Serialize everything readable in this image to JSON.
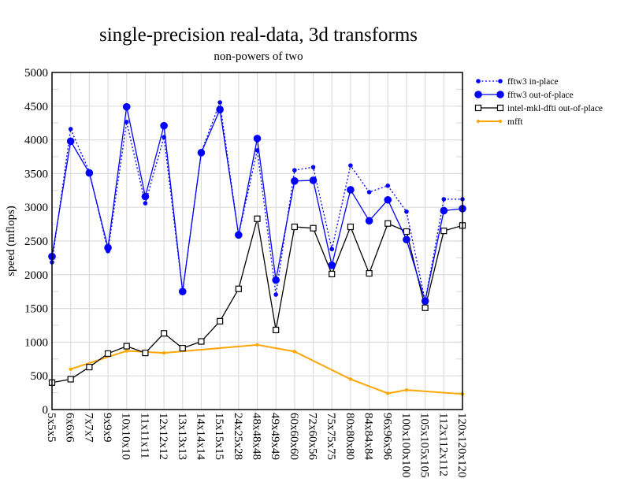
{
  "chart_data": {
    "type": "line",
    "title": "single-precision real-data, 3d transforms",
    "subtitle": "non-powers of two",
    "xlabel": "",
    "ylabel": "speed (mflops)",
    "ylim": [
      0,
      5000
    ],
    "yticks": [
      "0",
      "500",
      "1000",
      "1500",
      "2000",
      "2500",
      "3000",
      "3500",
      "4000",
      "4500",
      "5000"
    ],
    "grid": true,
    "legend_position": "top-right",
    "categories": [
      "5x5x5",
      "6x6x6",
      "7x7x7",
      "9x9x9",
      "10x10x10",
      "11x11x11",
      "12x12x12",
      "13x13x13",
      "14x14x14",
      "15x15x15",
      "24x25x28",
      "48x48x48",
      "49x49x49",
      "60x60x60",
      "72x60x56",
      "75x75x75",
      "80x80x80",
      "84x84x84",
      "96x96x96",
      "100x100x100",
      "105x105x105",
      "112x112x112",
      "120x120x120"
    ],
    "series": [
      {
        "name": "fftw3 in-place",
        "color": "#0000ff",
        "style": "dotted-small-dot",
        "values": [
          2185,
          4160,
          3530,
          2350,
          4265,
          3060,
          4040,
          1750,
          3820,
          4555,
          2590,
          3845,
          1705,
          3550,
          3595,
          2380,
          3620,
          3225,
          3320,
          2935,
          1610,
          3120,
          3120
        ]
      },
      {
        "name": "fftw3 out-of-place",
        "color": "#0000ff",
        "style": "solid-large-dot",
        "values": [
          2270,
          3980,
          3510,
          2400,
          4490,
          3160,
          4210,
          1750,
          3810,
          4450,
          2590,
          4020,
          1920,
          3390,
          3400,
          2140,
          3260,
          2800,
          3110,
          2520,
          1610,
          2950,
          2980
        ]
      },
      {
        "name": "intel-mkl-dfti out-of-place",
        "color": "#000000",
        "style": "solid-square",
        "values": [
          400,
          450,
          630,
          830,
          940,
          840,
          1130,
          910,
          1010,
          1310,
          1790,
          2830,
          1180,
          2710,
          2690,
          2010,
          2710,
          2020,
          2760,
          2640,
          1510,
          2650,
          2730
        ]
      },
      {
        "name": "mfft",
        "color": "#ffa500",
        "style": "solid-small-dot",
        "values": [
          null,
          600,
          null,
          null,
          870,
          null,
          840,
          null,
          null,
          null,
          null,
          960,
          null,
          860,
          null,
          null,
          450,
          null,
          240,
          290,
          null,
          null,
          230
        ]
      }
    ]
  }
}
